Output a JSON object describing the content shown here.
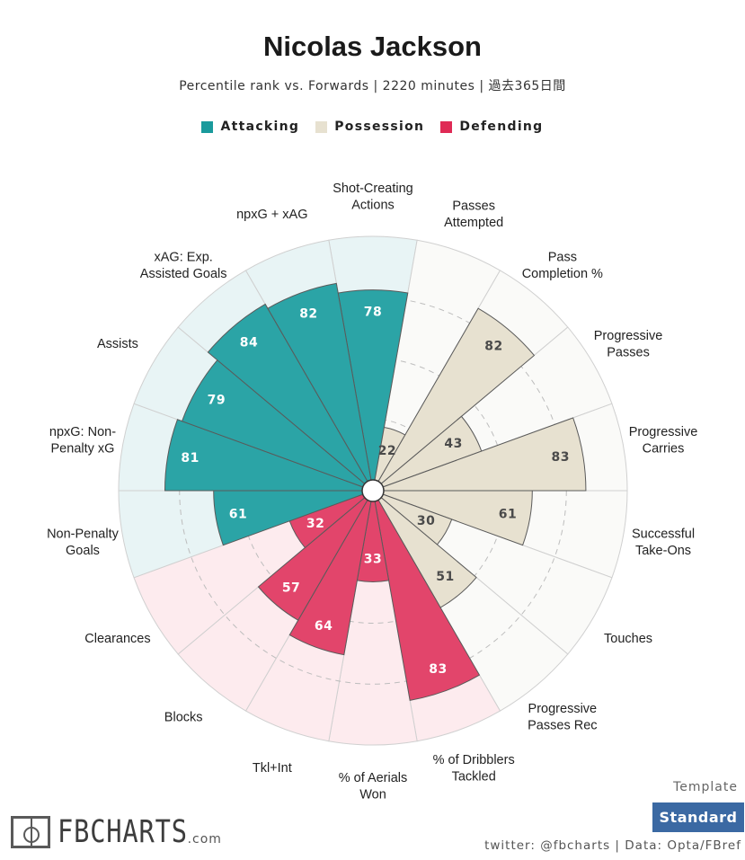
{
  "title": "Nicolas Jackson",
  "subtitle": "Percentile rank vs. Forwards | 2220 minutes | 過去365日間",
  "legend": [
    {
      "label": "Attacking",
      "color": "#1a9a9c"
    },
    {
      "label": "Possession",
      "color": "#e7e1d0"
    },
    {
      "label": "Defending",
      "color": "#df2a55"
    }
  ],
  "chart_data": {
    "type": "polar-bar",
    "rlim": [
      0,
      100
    ],
    "grid": true,
    "categories": [
      {
        "label": "Shot-Creating\nActions",
        "value": 78,
        "group": "Attacking"
      },
      {
        "label": "Passes\nAttempted",
        "value": 22,
        "group": "Possession"
      },
      {
        "label": "Pass\nCompletion %",
        "value": 82,
        "group": "Possession"
      },
      {
        "label": "Progressive\nPasses",
        "value": 43,
        "group": "Possession"
      },
      {
        "label": "Progressive\nCarries",
        "value": 83,
        "group": "Possession"
      },
      {
        "label": "Successful\nTake-Ons",
        "value": 61,
        "group": "Possession"
      },
      {
        "label": "Touches",
        "value": 30,
        "group": "Possession"
      },
      {
        "label": "Progressive\nPasses Rec",
        "value": 51,
        "group": "Possession"
      },
      {
        "label": "% of Dribblers\nTackled",
        "value": 83,
        "group": "Defending"
      },
      {
        "label": "% of Aerials\nWon",
        "value": 33,
        "group": "Defending"
      },
      {
        "label": "Tkl+Int",
        "value": 64,
        "group": "Defending"
      },
      {
        "label": "Blocks",
        "value": 57,
        "group": "Defending"
      },
      {
        "label": "Clearances",
        "value": 32,
        "group": "Defending"
      },
      {
        "label": "Non-Penalty\nGoals",
        "value": 61,
        "group": "Attacking"
      },
      {
        "label": "npxG: Non-\nPenalty xG",
        "value": 81,
        "group": "Attacking"
      },
      {
        "label": "Assists",
        "value": 79,
        "group": "Attacking"
      },
      {
        "label": "xAG: Exp.\nAssisted Goals",
        "value": 84,
        "group": "Attacking"
      },
      {
        "label": "npxG + xAG",
        "value": 82,
        "group": "Attacking"
      }
    ]
  },
  "footer": {
    "template_label": "Template",
    "template_value": "Standard",
    "credit": "twitter: @fbcharts | Data: Opta/FBref",
    "logo_text": "FBCHARTS",
    "logo_suffix": ".com"
  }
}
